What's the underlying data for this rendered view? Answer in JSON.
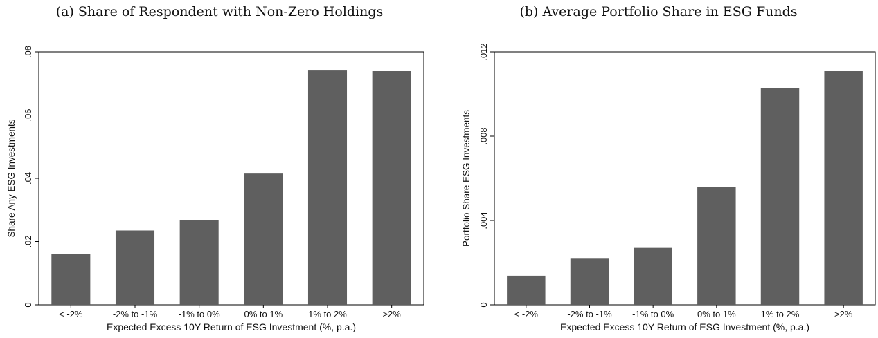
{
  "chart_data": [
    {
      "type": "bar",
      "title": "(a) Share of Respondent with Non-Zero Holdings",
      "xlabel": "Expected Excess 10Y Return of ESG Investment (%, p.a.)",
      "ylabel": "Share Any ESG Investments",
      "categories": [
        "< -2%",
        "-2% to -1%",
        "-1% to 0%",
        "0% to 1%",
        "1% to 2%",
        ">2%"
      ],
      "values": [
        0.016,
        0.0235,
        0.0267,
        0.0415,
        0.0743,
        0.074
      ],
      "ylim": [
        0,
        0.08
      ],
      "yticks": [
        0,
        0.02,
        0.04,
        0.06,
        0.08
      ],
      "ytick_labels": [
        "0",
        ".02",
        ".04",
        ".06",
        ".08"
      ],
      "bar_color": "#5f5f5f",
      "grid": false
    },
    {
      "type": "bar",
      "title": "(b) Average Portfolio Share in ESG Funds",
      "xlabel": "Expected Excess 10Y Return of ESG Investment (%, p.a.)",
      "ylabel": "Portfolio Share ESG Investments",
      "categories": [
        "< -2%",
        "-2% to -1%",
        "-1% to 0%",
        "0% to 1%",
        "1% to 2%",
        ">2%"
      ],
      "values": [
        0.00138,
        0.00222,
        0.0027,
        0.0056,
        0.01028,
        0.0111
      ],
      "ylim": [
        0,
        0.012
      ],
      "yticks": [
        0,
        0.004,
        0.008,
        0.012
      ],
      "ytick_labels": [
        "0",
        ".004",
        ".008",
        ".012"
      ],
      "bar_color": "#5f5f5f",
      "grid": false
    }
  ]
}
